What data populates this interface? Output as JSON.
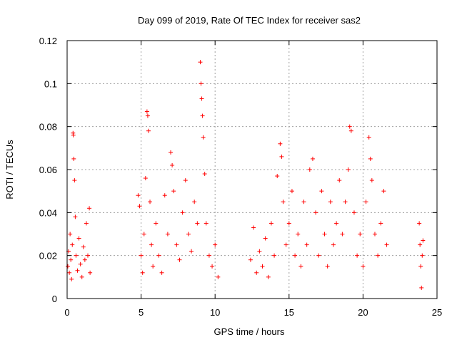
{
  "chart_data": {
    "type": "scatter",
    "title": "Day 099 of 2019, Rate Of TEC Index for receiver sas2",
    "xlabel": "GPS time / hours",
    "ylabel": "ROTI / TECUs",
    "xlim": [
      0,
      25
    ],
    "ylim": [
      0,
      0.12
    ],
    "xticks": [
      0,
      5,
      10,
      15,
      20,
      25
    ],
    "yticks": [
      0,
      0.02,
      0.04,
      0.06,
      0.08,
      0.1,
      0.12
    ],
    "xtick_labels": [
      "0",
      "5",
      "10",
      "15",
      "20",
      "25"
    ],
    "ytick_labels": [
      "0",
      "0.02",
      "0.04",
      "0.06",
      "0.08",
      "0.1",
      "0.12"
    ],
    "grid": true,
    "marker": "+",
    "series_color": "#ff0000",
    "series": [
      {
        "points": [
          [
            0.05,
            0.015
          ],
          [
            0.1,
            0.022
          ],
          [
            0.15,
            0.012
          ],
          [
            0.2,
            0.03
          ],
          [
            0.25,
            0.018
          ],
          [
            0.3,
            0.009
          ],
          [
            0.35,
            0.025
          ],
          [
            0.4,
            0.077
          ],
          [
            0.42,
            0.076
          ],
          [
            0.45,
            0.065
          ],
          [
            0.5,
            0.055
          ],
          [
            0.55,
            0.038
          ],
          [
            0.6,
            0.02
          ],
          [
            0.7,
            0.013
          ],
          [
            0.8,
            0.028
          ],
          [
            0.9,
            0.016
          ],
          [
            1.0,
            0.01
          ],
          [
            1.1,
            0.024
          ],
          [
            1.2,
            0.018
          ],
          [
            1.3,
            0.035
          ],
          [
            1.4,
            0.02
          ],
          [
            1.5,
            0.042
          ],
          [
            1.55,
            0.012
          ],
          [
            4.8,
            0.048
          ],
          [
            4.9,
            0.043
          ],
          [
            5.0,
            0.02
          ],
          [
            5.1,
            0.012
          ],
          [
            5.2,
            0.03
          ],
          [
            5.3,
            0.056
          ],
          [
            5.4,
            0.087
          ],
          [
            5.45,
            0.085
          ],
          [
            5.5,
            0.078
          ],
          [
            5.6,
            0.045
          ],
          [
            5.7,
            0.025
          ],
          [
            5.8,
            0.015
          ],
          [
            6.0,
            0.035
          ],
          [
            6.2,
            0.02
          ],
          [
            6.4,
            0.012
          ],
          [
            6.6,
            0.048
          ],
          [
            6.8,
            0.03
          ],
          [
            7.0,
            0.068
          ],
          [
            7.1,
            0.062
          ],
          [
            7.2,
            0.05
          ],
          [
            7.4,
            0.025
          ],
          [
            7.6,
            0.018
          ],
          [
            7.8,
            0.04
          ],
          [
            8.0,
            0.055
          ],
          [
            8.2,
            0.03
          ],
          [
            8.4,
            0.022
          ],
          [
            8.6,
            0.045
          ],
          [
            8.8,
            0.035
          ],
          [
            9.0,
            0.11
          ],
          [
            9.05,
            0.1
          ],
          [
            9.1,
            0.093
          ],
          [
            9.15,
            0.085
          ],
          [
            9.2,
            0.075
          ],
          [
            9.3,
            0.058
          ],
          [
            9.4,
            0.035
          ],
          [
            9.6,
            0.02
          ],
          [
            9.8,
            0.015
          ],
          [
            10.0,
            0.025
          ],
          [
            10.2,
            0.01
          ],
          [
            12.4,
            0.018
          ],
          [
            12.6,
            0.033
          ],
          [
            12.8,
            0.012
          ],
          [
            13.0,
            0.022
          ],
          [
            13.2,
            0.015
          ],
          [
            13.4,
            0.028
          ],
          [
            13.6,
            0.01
          ],
          [
            13.8,
            0.035
          ],
          [
            14.0,
            0.02
          ],
          [
            14.2,
            0.057
          ],
          [
            14.4,
            0.072
          ],
          [
            14.5,
            0.066
          ],
          [
            14.6,
            0.045
          ],
          [
            14.8,
            0.025
          ],
          [
            15.0,
            0.035
          ],
          [
            15.2,
            0.05
          ],
          [
            15.4,
            0.02
          ],
          [
            15.6,
            0.03
          ],
          [
            15.8,
            0.015
          ],
          [
            16.0,
            0.045
          ],
          [
            16.2,
            0.025
          ],
          [
            16.4,
            0.06
          ],
          [
            16.6,
            0.065
          ],
          [
            16.8,
            0.04
          ],
          [
            17.0,
            0.02
          ],
          [
            17.2,
            0.05
          ],
          [
            17.4,
            0.03
          ],
          [
            17.6,
            0.015
          ],
          [
            17.8,
            0.045
          ],
          [
            18.0,
            0.025
          ],
          [
            18.2,
            0.035
          ],
          [
            18.4,
            0.055
          ],
          [
            18.6,
            0.03
          ],
          [
            18.8,
            0.045
          ],
          [
            19.0,
            0.06
          ],
          [
            19.1,
            0.08
          ],
          [
            19.2,
            0.078
          ],
          [
            19.4,
            0.04
          ],
          [
            19.6,
            0.02
          ],
          [
            19.8,
            0.03
          ],
          [
            20.0,
            0.015
          ],
          [
            20.2,
            0.045
          ],
          [
            20.4,
            0.075
          ],
          [
            20.5,
            0.065
          ],
          [
            20.6,
            0.055
          ],
          [
            20.8,
            0.03
          ],
          [
            21.0,
            0.02
          ],
          [
            21.2,
            0.035
          ],
          [
            21.4,
            0.05
          ],
          [
            21.6,
            0.025
          ],
          [
            23.8,
            0.035
          ],
          [
            23.85,
            0.025
          ],
          [
            23.9,
            0.015
          ],
          [
            23.95,
            0.005
          ],
          [
            24.0,
            0.02
          ],
          [
            24.05,
            0.027
          ]
        ]
      }
    ]
  }
}
